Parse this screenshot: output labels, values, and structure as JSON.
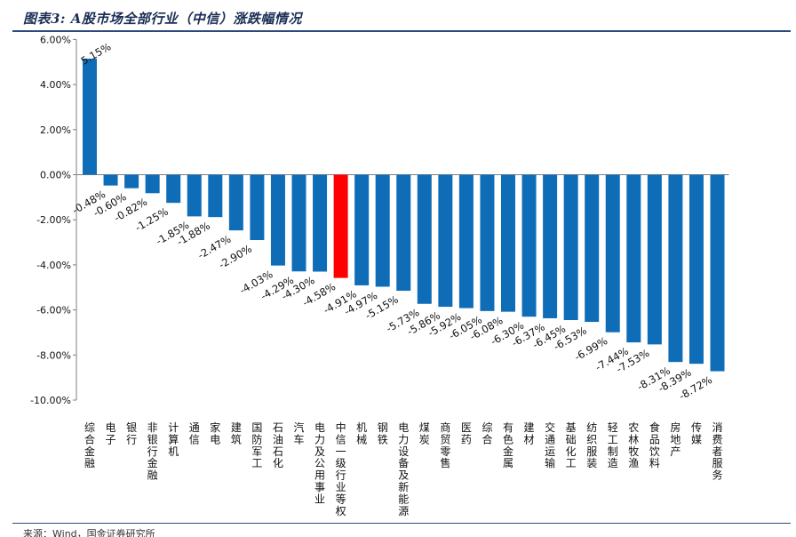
{
  "header": {
    "title": "图表3: A股市场全部行业（中信）涨跌幅情况"
  },
  "footer": {
    "source": "来源：Wind，国金证券研究所"
  },
  "chart_data": {
    "type": "bar",
    "title": "图表3: A股市场全部行业（中信）涨跌幅情况",
    "xlabel": "",
    "ylabel": "",
    "ylim": [
      -10,
      6
    ],
    "yticks": [
      6,
      4,
      2,
      0,
      -2,
      -4,
      -6,
      -8,
      -10
    ],
    "ytick_labels": [
      "6.00%",
      "4.00%",
      "2.00%",
      "0.00%",
      "-2.00%",
      "-4.00%",
      "-6.00%",
      "-8.00%",
      "-10.00%"
    ],
    "grid": false,
    "colors": {
      "default": "#0f6db8",
      "highlight": "#ff0000"
    },
    "highlight_category": "中信一级行业等权",
    "categories": [
      "综合金融",
      "电子",
      "银行",
      "非银行金融",
      "计算机",
      "通信",
      "家电",
      "建筑",
      "国防军工",
      "石油石化",
      "汽车",
      "电力及公用事业",
      "中信一级行业等权",
      "机械",
      "钢铁",
      "电力设备及新能源",
      "煤炭",
      "商贸零售",
      "医药",
      "综合",
      "有色金属",
      "建材",
      "交通运输",
      "基础化工",
      "纺织服装",
      "轻工制造",
      "农林牧渔",
      "食品饮料",
      "房地产",
      "传媒",
      "消费者服务"
    ],
    "values": [
      5.15,
      -0.48,
      -0.6,
      -0.82,
      -1.25,
      -1.85,
      -1.88,
      -2.47,
      -2.9,
      -4.03,
      -4.29,
      -4.3,
      -4.58,
      -4.91,
      -4.97,
      -5.15,
      -5.73,
      -5.86,
      -5.92,
      -6.05,
      -6.08,
      -6.3,
      -6.37,
      -6.45,
      -6.53,
      -6.99,
      -7.44,
      -7.53,
      -8.31,
      -8.39,
      -8.72
    ],
    "value_labels": [
      "5.15%",
      "-0.48%",
      "-0.60%",
      "-0.82%",
      "-1.25%",
      "-1.85%",
      "-1.88%",
      "-2.47%",
      "-2.90%",
      "-4.03%",
      "-4.29%",
      "-4.30%",
      "-4.58%",
      "-4.91%",
      "-4.97%",
      "-5.15%",
      "-5.73%",
      "-5.86%",
      "-5.92%",
      "-6.05%",
      "-6.08%",
      "-6.30%",
      "-6.37%",
      "-6.45%",
      "-6.53%",
      "-6.99%",
      "-7.44%",
      "-7.53%",
      "-8.31%",
      "-8.39%",
      "-8.72%"
    ]
  }
}
